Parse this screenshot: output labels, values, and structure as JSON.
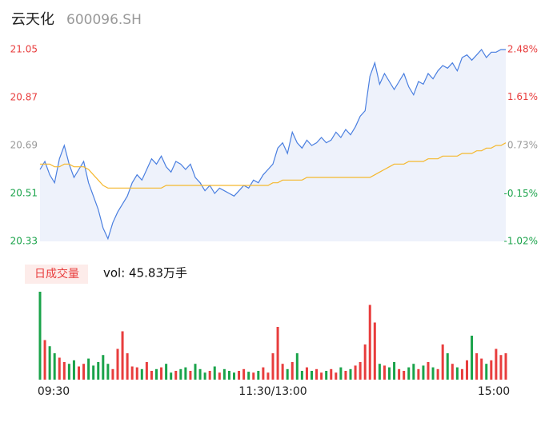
{
  "chart_data": {
    "type": "intraday",
    "title": "云天化",
    "subtitle": "600096.SH",
    "legend_title": "日成交量",
    "volume_label": "vol: 45.83万手",
    "xlim": [
      0,
      96
    ],
    "xticks": [
      {
        "value": 0,
        "label": "09:30"
      },
      {
        "value": 48,
        "label": "11:30/13:00"
      },
      {
        "value": 96,
        "label": "15:00"
      }
    ],
    "ylim": [
      20.33,
      21.05
    ],
    "yticks": [
      21.05,
      20.87,
      20.69,
      20.51,
      20.33
    ],
    "y2lim": [
      -1.02,
      2.48
    ],
    "y2ticks": [
      {
        "value": 2.48,
        "label": "2.48%"
      },
      {
        "value": 1.61,
        "label": "1.61%"
      },
      {
        "value": 0.73,
        "label": "0.73%"
      },
      {
        "value": -0.15,
        "label": "-0.15%"
      },
      {
        "value": -1.02,
        "label": "-1.02%"
      }
    ],
    "volume_ylim": [
      0,
      100
    ],
    "price_color": "#4a7fe0",
    "price_fill": "#eef2fb",
    "avg_color": "#f5b82e",
    "up_color": "#e83d3d",
    "down_color": "#1aa34a",
    "flat_color": "#999999",
    "price": [
      20.6,
      20.63,
      20.58,
      20.55,
      20.64,
      20.69,
      20.62,
      20.57,
      20.6,
      20.63,
      20.55,
      20.5,
      20.45,
      20.38,
      20.34,
      20.4,
      20.44,
      20.47,
      20.5,
      20.55,
      20.58,
      20.56,
      20.6,
      20.64,
      20.62,
      20.65,
      20.61,
      20.59,
      20.63,
      20.62,
      20.6,
      20.62,
      20.57,
      20.55,
      20.52,
      20.54,
      20.51,
      20.53,
      20.52,
      20.51,
      20.5,
      20.52,
      20.54,
      20.53,
      20.56,
      20.55,
      20.58,
      20.6,
      20.62,
      20.68,
      20.7,
      20.66,
      20.74,
      20.7,
      20.68,
      20.71,
      20.69,
      20.7,
      20.72,
      20.7,
      20.71,
      20.74,
      20.72,
      20.75,
      20.73,
      20.76,
      20.8,
      20.82,
      20.95,
      21.0,
      20.92,
      20.96,
      20.93,
      20.9,
      20.93,
      20.96,
      20.91,
      20.88,
      20.93,
      20.92,
      20.96,
      20.94,
      20.97,
      20.99,
      20.98,
      21.0,
      20.97,
      21.02,
      21.03,
      21.01,
      21.03,
      21.05,
      21.02,
      21.04,
      21.04,
      21.05,
      21.05
    ],
    "avg": [
      20.62,
      20.62,
      20.62,
      20.61,
      20.61,
      20.62,
      20.62,
      20.61,
      20.61,
      20.61,
      20.6,
      20.58,
      20.56,
      20.54,
      20.53,
      20.53,
      20.53,
      20.53,
      20.53,
      20.53,
      20.53,
      20.53,
      20.53,
      20.53,
      20.53,
      20.53,
      20.54,
      20.54,
      20.54,
      20.54,
      20.54,
      20.54,
      20.54,
      20.54,
      20.54,
      20.54,
      20.54,
      20.54,
      20.54,
      20.54,
      20.54,
      20.54,
      20.54,
      20.54,
      20.54,
      20.54,
      20.54,
      20.54,
      20.55,
      20.55,
      20.56,
      20.56,
      20.56,
      20.56,
      20.56,
      20.57,
      20.57,
      20.57,
      20.57,
      20.57,
      20.57,
      20.57,
      20.57,
      20.57,
      20.57,
      20.57,
      20.57,
      20.57,
      20.57,
      20.58,
      20.59,
      20.6,
      20.61,
      20.62,
      20.62,
      20.62,
      20.63,
      20.63,
      20.63,
      20.63,
      20.64,
      20.64,
      20.64,
      20.65,
      20.65,
      20.65,
      20.65,
      20.66,
      20.66,
      20.66,
      20.67,
      20.67,
      20.68,
      20.68,
      20.69,
      20.69,
      20.7
    ],
    "volume": [
      100,
      45,
      38,
      30,
      25,
      20,
      18,
      22,
      15,
      18,
      24,
      16,
      20,
      28,
      18,
      12,
      35,
      55,
      30,
      15,
      14,
      12,
      20,
      10,
      12,
      14,
      18,
      8,
      10,
      12,
      14,
      10,
      18,
      12,
      8,
      10,
      15,
      8,
      12,
      10,
      8,
      10,
      12,
      9,
      8,
      10,
      14,
      8,
      30,
      60,
      18,
      12,
      20,
      30,
      10,
      14,
      10,
      12,
      8,
      10,
      12,
      8,
      14,
      10,
      12,
      16,
      20,
      40,
      85,
      65,
      18,
      16,
      14,
      20,
      12,
      10,
      14,
      18,
      12,
      16,
      20,
      14,
      12,
      40,
      30,
      18,
      14,
      12,
      22,
      50,
      30,
      24,
      18,
      22,
      35,
      28,
      30
    ]
  }
}
